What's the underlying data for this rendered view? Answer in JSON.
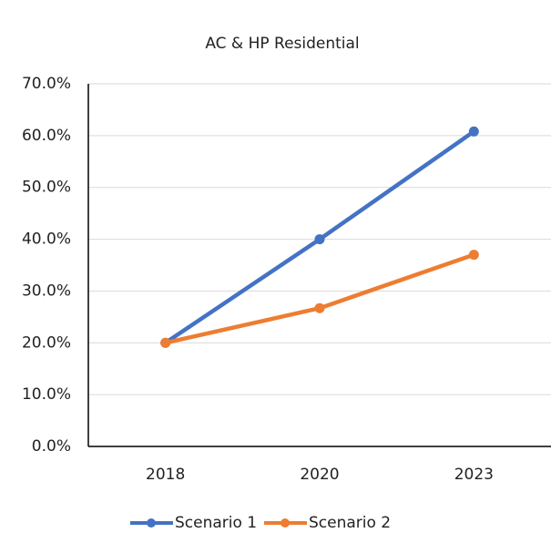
{
  "chart_data": {
    "type": "line",
    "title": "AC & HP Residential",
    "categories": [
      "2018",
      "2020",
      "2023"
    ],
    "series": [
      {
        "name": "Scenario 1",
        "color": "#4472c4",
        "values": [
          20,
          40,
          60.8
        ]
      },
      {
        "name": "Scenario 2",
        "color": "#ed7d31",
        "values": [
          20,
          26.7,
          37
        ]
      }
    ],
    "ylim": [
      0,
      70
    ],
    "yticks": [
      {
        "value": 0,
        "label": "0.0%"
      },
      {
        "value": 10,
        "label": "10.0%"
      },
      {
        "value": 20,
        "label": "20.0%"
      },
      {
        "value": 30,
        "label": "30.0%"
      },
      {
        "value": 40,
        "label": "40.0%"
      },
      {
        "value": 50,
        "label": "50.0%"
      },
      {
        "value": 60,
        "label": "60.0%"
      },
      {
        "value": 70,
        "label": "70.0%"
      }
    ],
    "grid": true,
    "legend": "bottom"
  }
}
